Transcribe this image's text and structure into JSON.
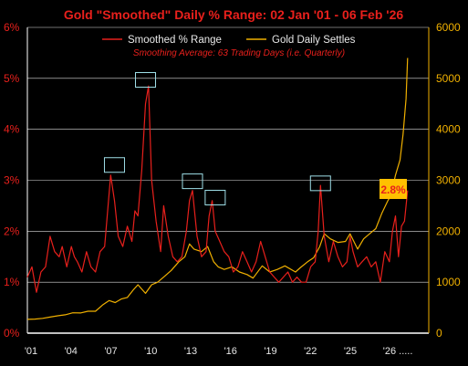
{
  "chart_data": {
    "type": "line",
    "title": "Gold \"Smoothed\" Daily % Range:  02 Jan '01 - 06 Feb '26",
    "subtitle": "Smoothing Average:  63 Trading Days (i.e. Quarterly)",
    "legend_position": "top",
    "grid": true,
    "x_ticks": [
      "'01",
      "'04",
      "'07",
      "'10",
      "'13",
      "'16",
      "'19",
      "'22",
      "'25",
      "'26 ....."
    ],
    "x_range": [
      2001.0,
      2027.5
    ],
    "y_left": {
      "ticks": [
        "0%",
        "1%",
        "2%",
        "3%",
        "4%",
        "5%",
        "6%"
      ],
      "range": [
        0,
        6
      ]
    },
    "y_right": {
      "ticks": [
        "0",
        "1000",
        "2000",
        "3000",
        "4000",
        "5000",
        "6000"
      ],
      "range": [
        0,
        6000
      ]
    },
    "series": [
      {
        "name": "Smoothed % Range",
        "axis": "left",
        "color": "#e8201c",
        "x": [
          2001.0,
          2001.3,
          2001.6,
          2001.9,
          2002.2,
          2002.5,
          2002.8,
          2003.1,
          2003.3,
          2003.6,
          2003.9,
          2004.1,
          2004.3,
          2004.6,
          2004.9,
          2005.2,
          2005.5,
          2005.8,
          2006.1,
          2006.3,
          2006.5,
          2006.75,
          2007.0,
          2007.3,
          2007.6,
          2007.9,
          2008.1,
          2008.3,
          2008.55,
          2008.8,
          2009.0,
          2009.2,
          2009.5,
          2009.8,
          2010.0,
          2010.3,
          2010.6,
          2010.9,
          2011.2,
          2011.5,
          2011.7,
          2011.9,
          2012.2,
          2012.5,
          2012.8,
          2013.0,
          2013.2,
          2013.4,
          2013.7,
          2014.0,
          2014.3,
          2014.6,
          2014.9,
          2015.2,
          2015.5,
          2015.8,
          2016.1,
          2016.4,
          2016.7,
          2017.0,
          2017.3,
          2017.6,
          2017.9,
          2018.2,
          2018.5,
          2018.8,
          2019.1,
          2019.4,
          2019.7,
          2020.0,
          2020.2,
          2020.35,
          2020.6,
          2020.9,
          2021.2,
          2021.5,
          2021.8,
          2022.1,
          2022.3,
          2022.5,
          2022.8,
          2023.1,
          2023.4,
          2023.7,
          2024.0,
          2024.3,
          2024.6,
          2024.9,
          2025.1,
          2025.3,
          2025.5,
          2025.7,
          2025.9,
          2026.1
        ],
        "values": [
          1.1,
          1.3,
          0.8,
          1.2,
          1.3,
          1.9,
          1.6,
          1.5,
          1.7,
          1.3,
          1.7,
          1.5,
          1.4,
          1.2,
          1.6,
          1.3,
          1.2,
          1.6,
          1.7,
          2.4,
          3.1,
          2.6,
          1.9,
          1.7,
          2.1,
          1.8,
          2.4,
          2.3,
          3.2,
          4.5,
          4.85,
          3.0,
          2.2,
          1.6,
          2.5,
          1.9,
          1.5,
          1.4,
          1.5,
          2.0,
          2.6,
          2.8,
          1.9,
          1.5,
          1.6,
          2.3,
          2.6,
          2.0,
          1.8,
          1.6,
          1.5,
          1.2,
          1.3,
          1.6,
          1.4,
          1.2,
          1.4,
          1.8,
          1.5,
          1.2,
          1.1,
          1.0,
          1.1,
          1.2,
          1.0,
          1.1,
          1.0,
          1.0,
          1.3,
          1.4,
          2.0,
          2.9,
          1.9,
          1.4,
          1.8,
          1.5,
          1.3,
          1.4,
          1.9,
          1.6,
          1.3,
          1.4,
          1.5,
          1.3,
          1.4,
          1.0,
          1.6,
          1.4,
          2.0,
          2.3,
          1.5,
          2.1,
          2.2,
          2.8
        ]
      },
      {
        "name": "Gold Daily Settles",
        "axis": "right",
        "color": "#f0b000",
        "x": [
          2001.0,
          2001.5,
          2002.0,
          2002.5,
          2003.0,
          2003.5,
          2004.0,
          2004.5,
          2005.0,
          2005.5,
          2006.0,
          2006.4,
          2006.8,
          2007.2,
          2007.6,
          2008.0,
          2008.3,
          2008.8,
          2009.2,
          2009.6,
          2010.0,
          2010.5,
          2011.0,
          2011.4,
          2011.7,
          2012.0,
          2012.5,
          2012.9,
          2013.3,
          2013.6,
          2014.0,
          2014.5,
          2015.0,
          2015.5,
          2015.9,
          2016.5,
          2017.0,
          2017.5,
          2018.0,
          2018.7,
          2019.0,
          2019.5,
          2019.9,
          2020.3,
          2020.6,
          2021.0,
          2021.5,
          2022.0,
          2022.3,
          2022.8,
          2023.2,
          2023.6,
          2024.0,
          2024.4,
          2024.8,
          2025.0,
          2025.3,
          2025.6,
          2025.8,
          2026.0,
          2026.1
        ],
        "values": [
          270,
          275,
          290,
          315,
          340,
          360,
          400,
          395,
          430,
          430,
          560,
          640,
          600,
          670,
          700,
          850,
          950,
          780,
          950,
          1000,
          1100,
          1230,
          1400,
          1500,
          1750,
          1650,
          1600,
          1700,
          1400,
          1300,
          1250,
          1300,
          1200,
          1150,
          1080,
          1320,
          1200,
          1250,
          1320,
          1200,
          1280,
          1400,
          1480,
          1700,
          1950,
          1850,
          1780,
          1800,
          1950,
          1650,
          1850,
          1950,
          2050,
          2350,
          2600,
          2700,
          3100,
          3400,
          3900,
          4600,
          5400
        ]
      }
    ],
    "annotations": [
      {
        "label": "2.8%",
        "x": 2026.1,
        "y": 2.8,
        "color": "#e8201c",
        "background": "#ffc000"
      },
      {
        "type": "box",
        "x_center": 2006.75,
        "y_center": 3.3
      },
      {
        "type": "box",
        "x_center": 2008.8,
        "y_center": 4.97
      },
      {
        "type": "box",
        "x_center": 2011.9,
        "y_center": 2.98
      },
      {
        "type": "box",
        "x_center": 2013.4,
        "y_center": 2.66
      },
      {
        "type": "box",
        "x_center": 2020.35,
        "y_center": 2.94
      }
    ]
  }
}
